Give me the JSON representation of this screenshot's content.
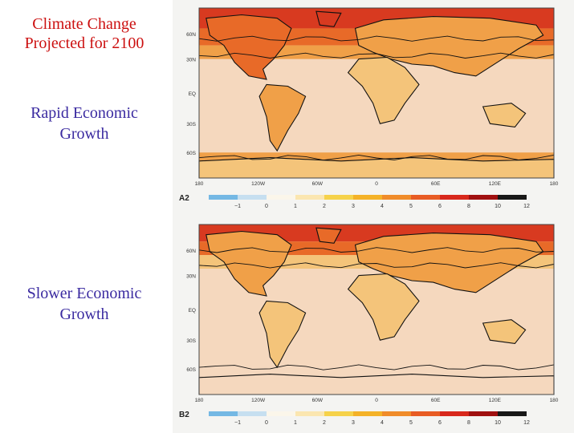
{
  "title": {
    "line1": "Climate Change",
    "line2": "Projected for 2100"
  },
  "scenarios": [
    {
      "label_line1": "Rapid Economic",
      "label_line2": "Growth",
      "code": "A2"
    },
    {
      "label_line1": "Slower Economic",
      "label_line2": "Growth",
      "code": "B2"
    }
  ],
  "axes": {
    "lat_labels": [
      "60N",
      "30N",
      "EQ",
      "30S",
      "60S"
    ],
    "lon_labels": [
      "180",
      "120W",
      "60W",
      "0",
      "60E",
      "120E",
      "180"
    ]
  },
  "scale": {
    "ticks": [
      "−1",
      "0",
      "1",
      "2",
      "3",
      "4",
      "5",
      "6",
      "8",
      "10",
      "12"
    ],
    "colors": [
      "#74b8e4",
      "#c6dff0",
      "#fbf6ea",
      "#fbe6b0",
      "#f6d24a",
      "#f4b228",
      "#f08c2a",
      "#e85c24",
      "#d8281c",
      "#a01010",
      "#181818"
    ]
  },
  "map_colors": {
    "base": "#f6dcc0",
    "ocean_fill": "#f5d8be",
    "warm1": "#f4c47a",
    "warm2": "#f0a048",
    "warm3": "#e86a28",
    "warm4": "#d83a20",
    "coast": "#111111"
  }
}
